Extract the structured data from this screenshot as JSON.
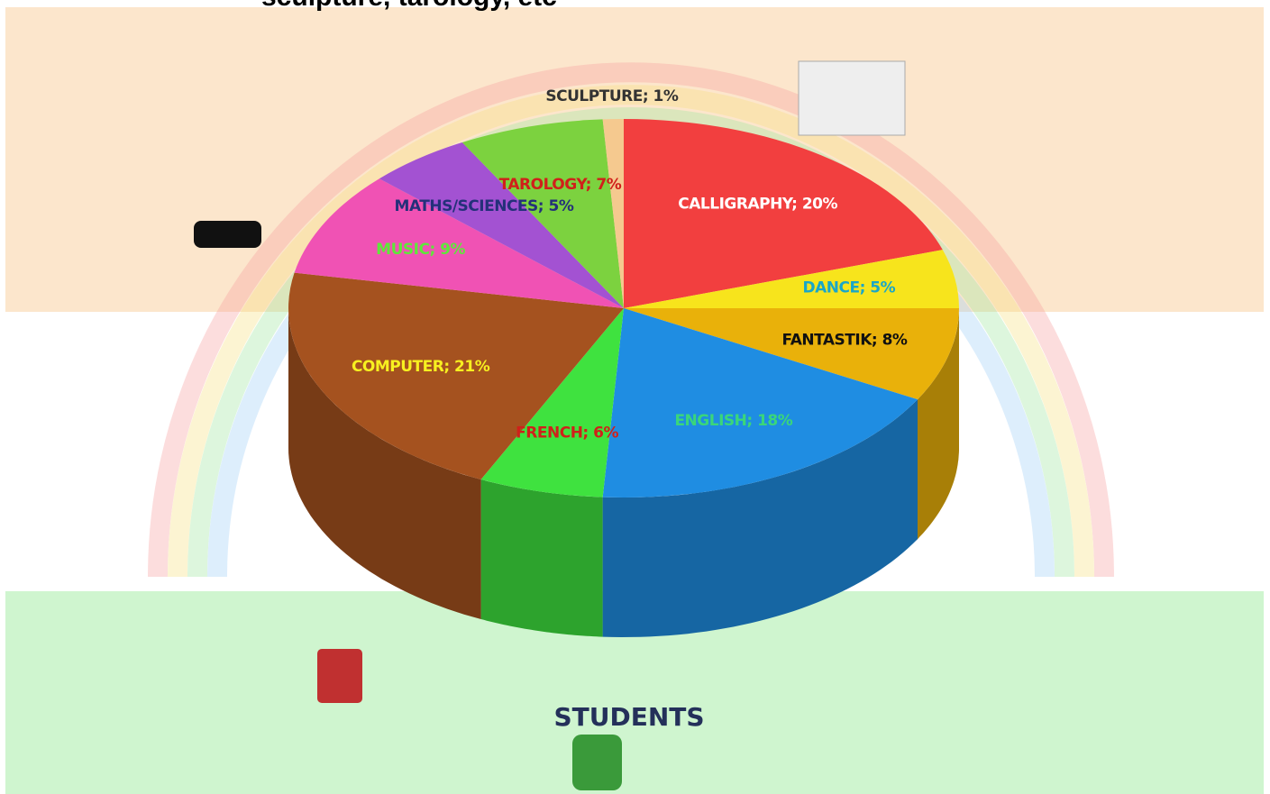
{
  "chart_data": {
    "type": "pie3d",
    "title": "sculpture, tarology, etc",
    "footer": "STUDENTS",
    "values": [
      20,
      5,
      8,
      18,
      6,
      21,
      9,
      5,
      7,
      1
    ],
    "value_labels": [
      "CALLIGRAPHY; 20%",
      "DANCE; 5%",
      "FANTASTIK; 8%",
      "ENGLISH; 18%",
      "FRENCH; 6%",
      "COMPUTER; 21%",
      "MUSIC; 9%",
      "MATHS/SCIENCES; 5%",
      "TAROLOGY; 7%",
      "SCULPTURE; 1%"
    ],
    "colors": [
      "#f23f3f",
      "#f7e41c",
      "#e9b10a",
      "#1f8de2",
      "#3fe23f",
      "#a5521f",
      "#f052b4",
      "#a352d2",
      "#7cd23f",
      "#f5c98f"
    ],
    "label_colors": [
      "#ffffff",
      "#1aa6c8",
      "#111111",
      "#3ad67a",
      "#d0201a",
      "#f7f020",
      "#5ee83a",
      "#24307a",
      "#d0201a",
      "#333333"
    ]
  }
}
